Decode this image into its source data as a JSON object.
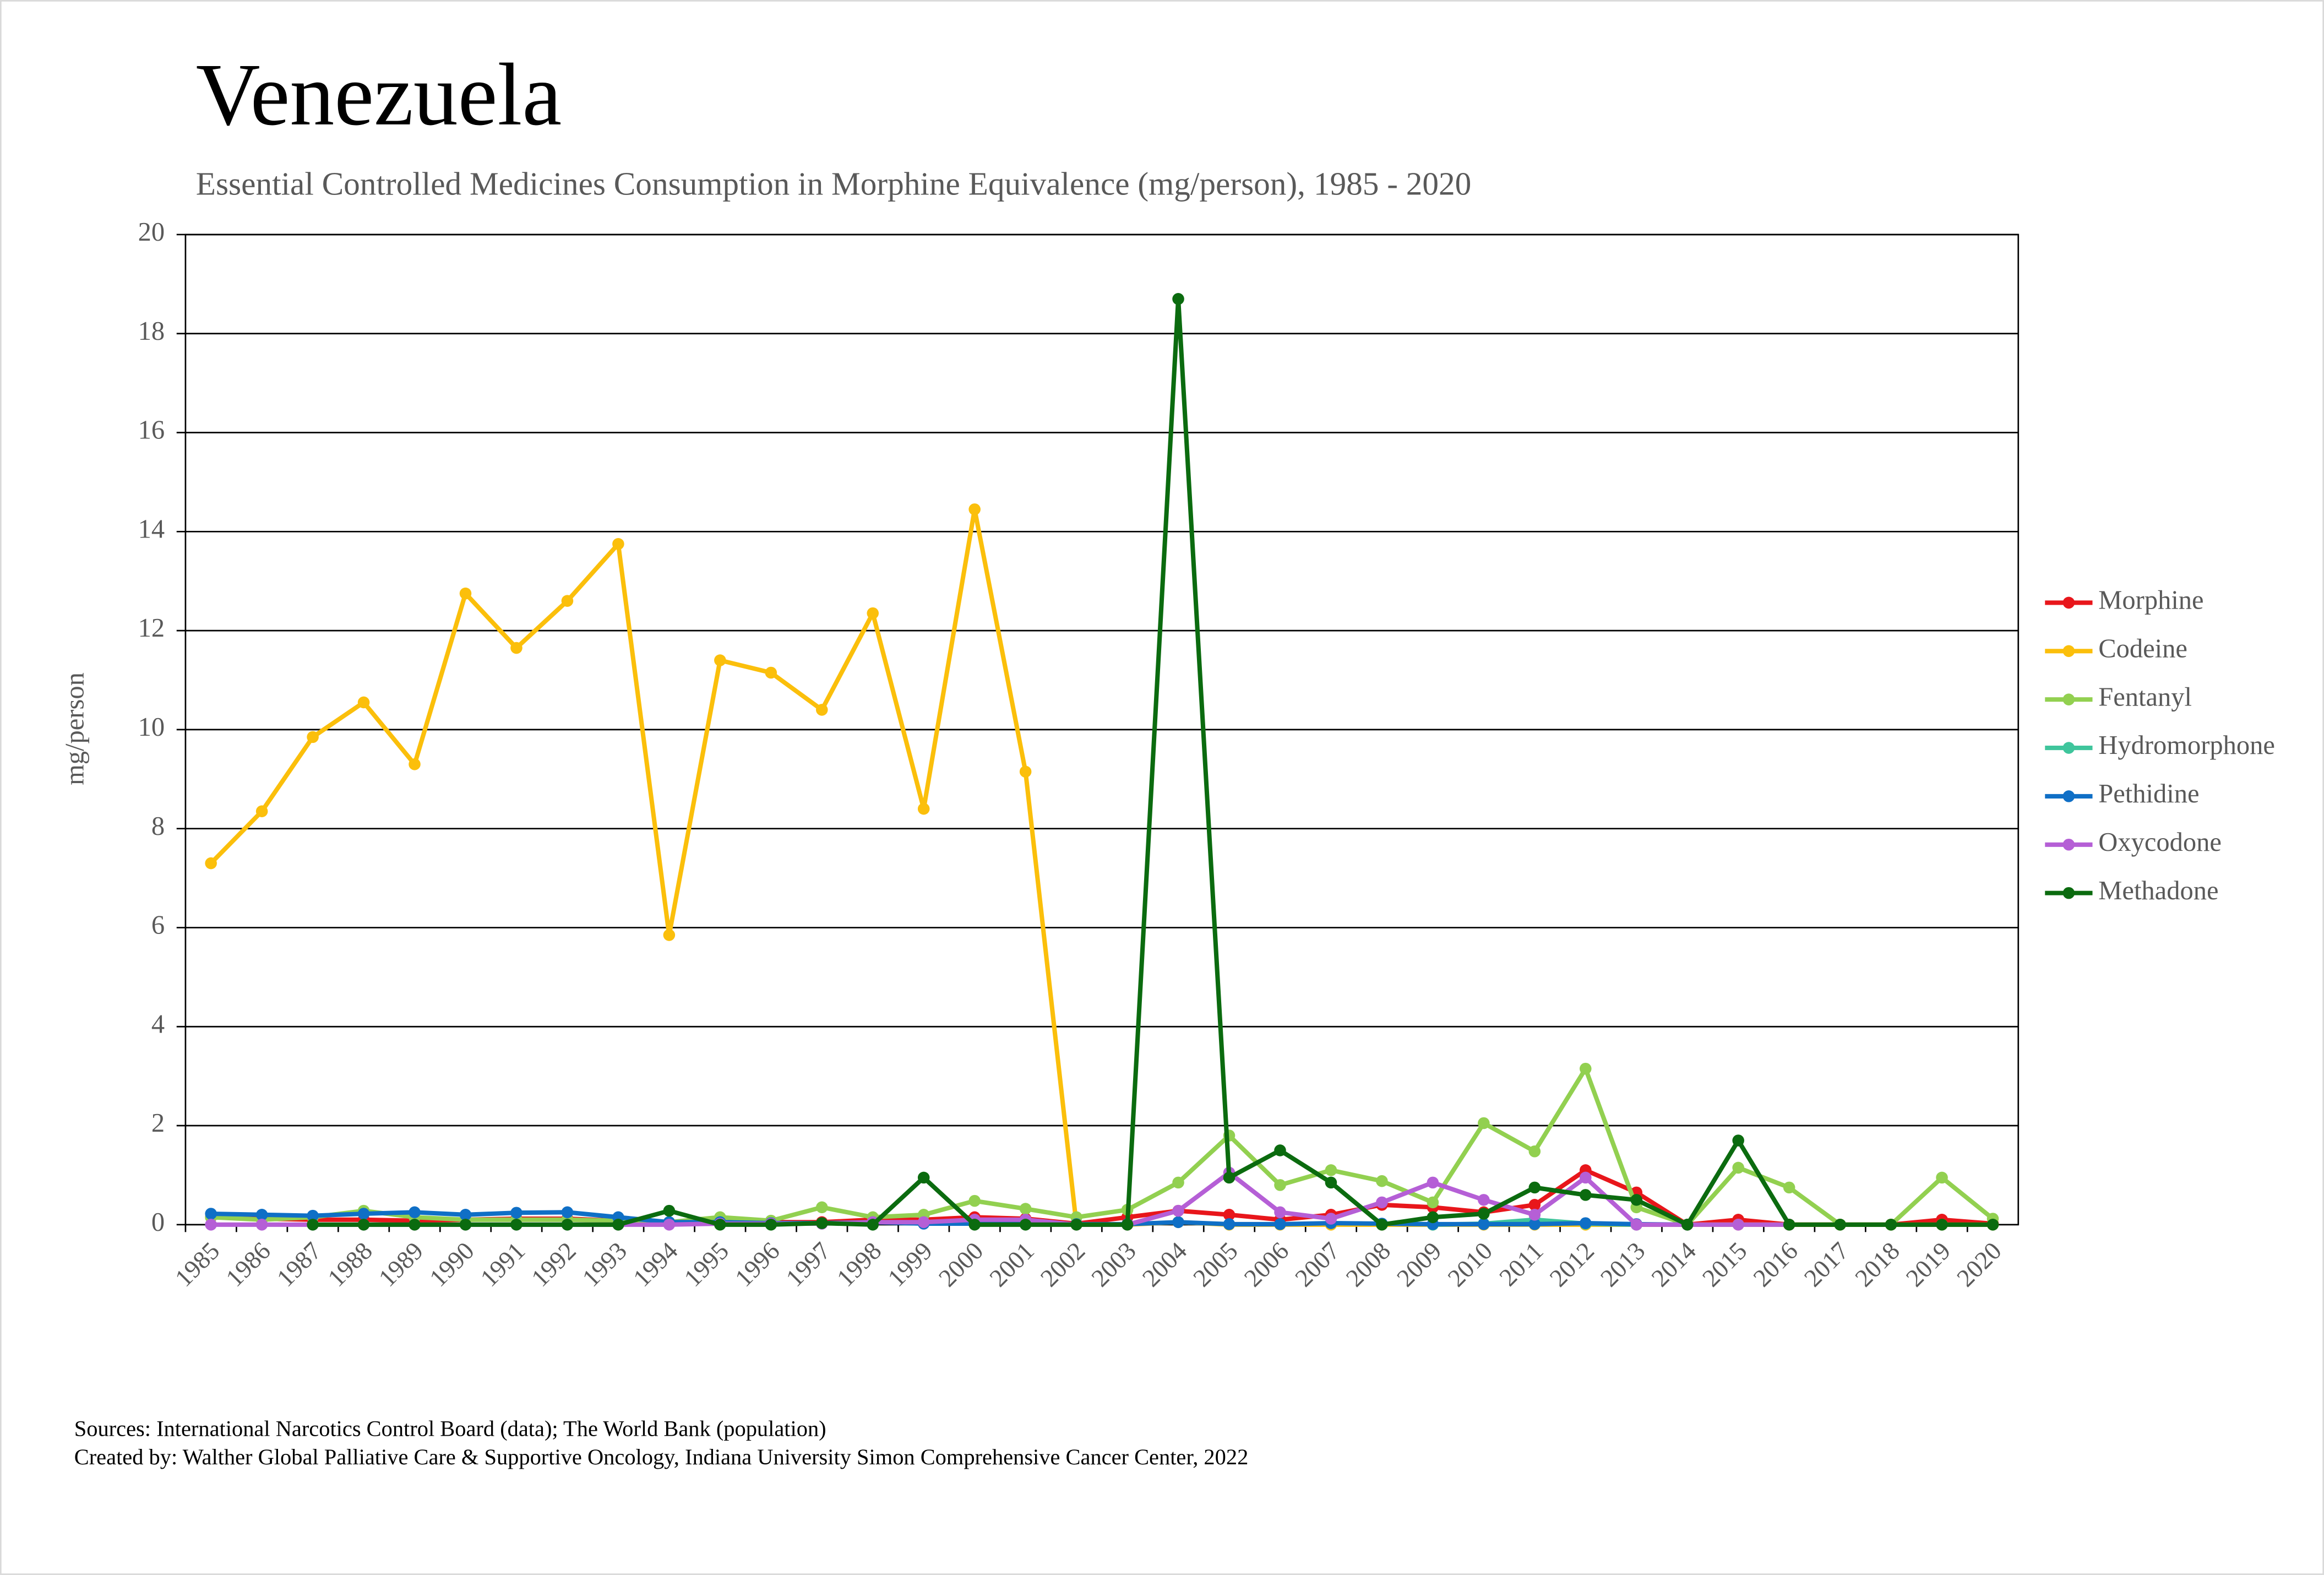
{
  "chart_data": {
    "type": "line",
    "title": "Venezuela",
    "subtitle": "Essential Controlled Medicines Consumption in Morphine Equivalence (mg/person), 1985 - 2020",
    "y_label": "mg/person",
    "sources": "Sources: International Narcotics Control Board (data); The World Bank (population)",
    "created_by": "Created by: Walther Global Palliative Care & Supportive Oncology, Indiana University Simon Comprehensive Cancer Center, 2022",
    "categories": [
      "1985",
      "1986",
      "1987",
      "1988",
      "1989",
      "1990",
      "1991",
      "1992",
      "1993",
      "1994",
      "1995",
      "1996",
      "1997",
      "1998",
      "1999",
      "2000",
      "2001",
      "2002",
      "2003",
      "2004",
      "2005",
      "2006",
      "2007",
      "2008",
      "2009",
      "2010",
      "2011",
      "2012",
      "2013",
      "2014",
      "2015",
      "2016",
      "2017",
      "2018",
      "2019",
      "2020"
    ],
    "ylim": [
      0,
      20
    ],
    "yticks": [
      0,
      2,
      4,
      6,
      8,
      10,
      12,
      14,
      16,
      18,
      20
    ],
    "grid": true,
    "legend": "right",
    "series": [
      {
        "name": "Morphine",
        "color": "#e8161b",
        "values": [
          0.15,
          0.12,
          0.1,
          0.1,
          0.08,
          0.1,
          0.12,
          0.12,
          0.08,
          0.05,
          0.05,
          0.05,
          0.05,
          0.1,
          0.1,
          0.15,
          0.12,
          0.02,
          0.15,
          0.28,
          0.2,
          0.1,
          0.2,
          0.4,
          0.35,
          0.25,
          0.4,
          1.1,
          0.65,
          0,
          0.1,
          0,
          0,
          0,
          0.1,
          0.02
        ]
      },
      {
        "name": "Codeine",
        "color": "#fbbf0b",
        "values": [
          7.3,
          8.35,
          9.85,
          10.55,
          9.3,
          12.75,
          11.65,
          12.6,
          13.75,
          5.85,
          11.4,
          11.15,
          10.4,
          12.35,
          8.4,
          14.45,
          9.15,
          0,
          0,
          0.05,
          0,
          0,
          0,
          0,
          0,
          0,
          0,
          0,
          0,
          0,
          0,
          0,
          0,
          0,
          0,
          0
        ]
      },
      {
        "name": "Fentanyl",
        "color": "#92d050",
        "values": [
          0.15,
          0.1,
          0.15,
          0.28,
          0.15,
          0.1,
          0.1,
          0.1,
          0.08,
          0.05,
          0.15,
          0.08,
          0.35,
          0.15,
          0.2,
          0.48,
          0.32,
          0.15,
          0.3,
          0.85,
          1.8,
          0.8,
          1.1,
          0.88,
          0.45,
          2.05,
          1.48,
          3.15,
          0.35,
          0,
          1.15,
          0.75,
          0,
          0,
          0.95,
          0.12
        ]
      },
      {
        "name": "Hydromorphone",
        "color": "#3fc59c",
        "values": [
          null,
          null,
          null,
          null,
          null,
          null,
          null,
          null,
          null,
          null,
          null,
          null,
          null,
          null,
          null,
          null,
          null,
          null,
          null,
          null,
          null,
          null,
          null,
          null,
          0,
          0.02,
          0.1,
          0.02,
          0,
          null,
          null,
          null,
          null,
          null,
          null,
          null
        ]
      },
      {
        "name": "Pethidine",
        "color": "#0f6fc6",
        "values": [
          0.22,
          0.2,
          0.18,
          0.22,
          0.25,
          0.2,
          0.24,
          0.25,
          0.15,
          0.05,
          0.05,
          0.03,
          0.03,
          0.05,
          0.02,
          0.02,
          0.02,
          0.01,
          0.01,
          0.05,
          0.01,
          0.01,
          0.03,
          0.02,
          0.01,
          0.01,
          0.01,
          0.03,
          0.01,
          0,
          null,
          null,
          null,
          null,
          null,
          null
        ]
      },
      {
        "name": "Oxycodone",
        "color": "#b55fd6",
        "values": [
          0,
          0,
          0,
          0,
          0,
          0,
          0,
          0,
          0,
          0,
          0.02,
          0.02,
          0.02,
          0.05,
          0.05,
          0.1,
          0.1,
          0,
          0,
          0.28,
          1.05,
          0.25,
          0.12,
          0.45,
          0.85,
          0.5,
          0.2,
          0.95,
          0,
          0,
          0,
          0,
          null,
          null,
          null,
          null
        ]
      },
      {
        "name": "Methadone",
        "color": "#0b6b0f",
        "values": [
          null,
          null,
          0,
          0,
          0,
          0,
          0,
          0,
          0,
          0.28,
          0,
          0,
          0.03,
          0,
          0.95,
          0,
          0,
          0,
          0,
          18.7,
          0.95,
          1.5,
          0.85,
          0,
          0.15,
          0.22,
          0.75,
          0.6,
          0.5,
          0,
          1.7,
          0,
          0,
          0,
          0,
          0
        ]
      }
    ]
  }
}
